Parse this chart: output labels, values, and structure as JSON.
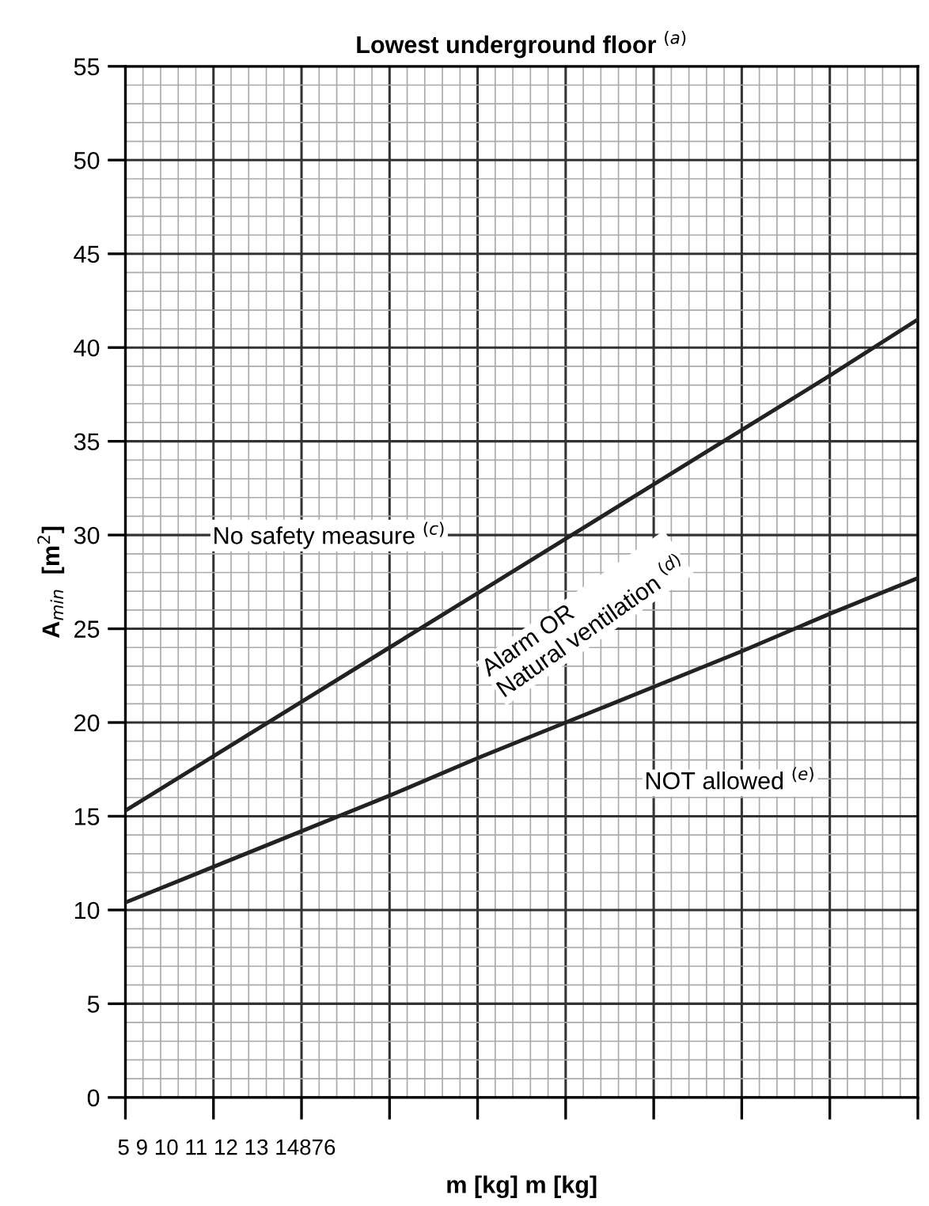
{
  "chart_data": {
    "type": "line",
    "title": "Lowest underground floor $^{(a)}$",
    "xlabel": "m [kg] m [kg]",
    "ylabel": "A$_{min}$  [m$^{2}$]",
    "categories": [
      null,
      null,
      null,
      null,
      null,
      null,
      null,
      null,
      null,
      null
    ],
    "series": [
      {
        "color": "#222222",
        "values": [
          15.3,
          18.2,
          21.1,
          24.0,
          26.9,
          29.8,
          32.7,
          35.6,
          38.5,
          41.5
        ]
      },
      {
        "color": "#222222",
        "values": [
          10.4,
          12.3,
          14.2,
          16.1,
          18.1,
          20.0,
          21.9,
          23.8,
          25.8,
          27.7
        ]
      }
    ],
    "ylim": [
      0,
      55
    ],
    "yticks": [
      0,
      5,
      10,
      15,
      20,
      25,
      30,
      35,
      40,
      45,
      50,
      55
    ],
    "grid": true,
    "marker": "none",
    "line_style": "solid",
    "legend": false,
    "annotations": [
      "No safety measure $^{(c)}$",
      "Alarm OR\nNatural ventilation $^{(d)}$",
      "NOT allowed $^{(e)}$",
      "5 9 10 11 12 13 14876"
    ]
  }
}
